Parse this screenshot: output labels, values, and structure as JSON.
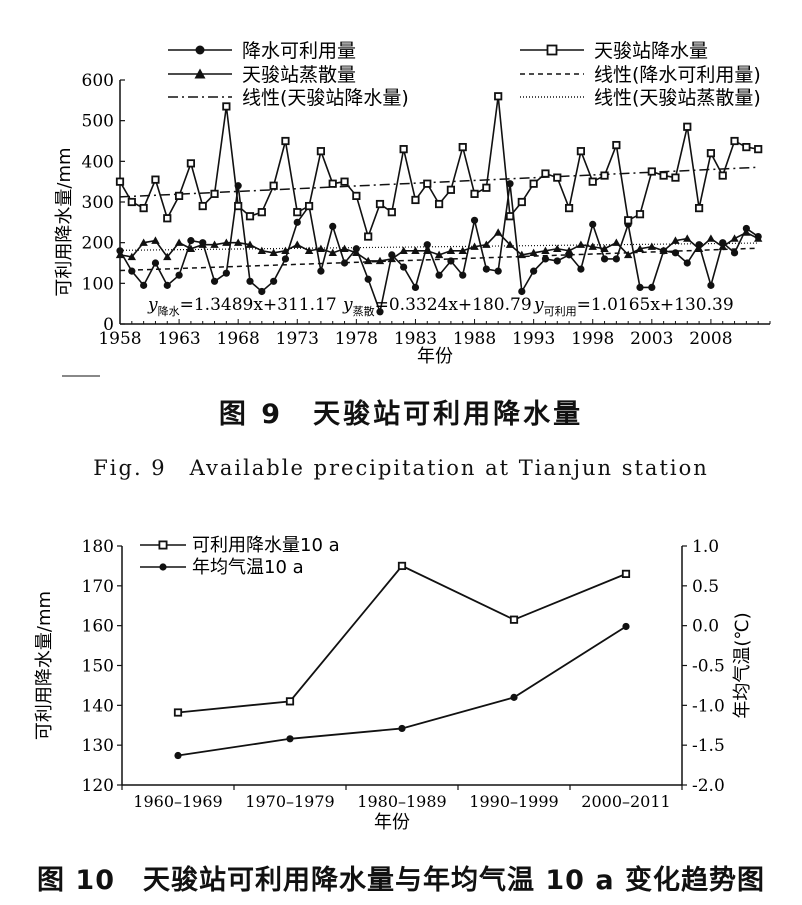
{
  "figure9": {
    "caption_cn": "图 9　天骏站可利用降水量",
    "caption_en": "Fig. 9　Available precipitation at Tianjun station",
    "chart_data": {
      "type": "line",
      "xlabel": "年份",
      "ylabel": "可利用降水量/mm",
      "ylim": [
        0,
        600
      ],
      "yticks": [
        0,
        100,
        200,
        300,
        400,
        500,
        600
      ],
      "xlim": [
        1958,
        2013
      ],
      "xticks": [
        1958,
        1963,
        1968,
        1973,
        1978,
        1983,
        1988,
        1993,
        1998,
        2003,
        2008
      ],
      "legend_position": "top",
      "legend": [
        "降水可利用量",
        "天骏站降水量",
        "天骏站蒸散量",
        "线性(降水可利用量)",
        "线性(天骏站降水量)",
        "线性(天骏站蒸散量)"
      ],
      "equations": [
        {
          "prefix": "y",
          "sub": "降水",
          "rest": "=1.3489x+311.17"
        },
        {
          "prefix": "y",
          "sub": "蒸散",
          "rest": "=0.3324x+180.79"
        },
        {
          "prefix": "y",
          "sub": "可利用",
          "rest": "=1.0165x+130.39"
        }
      ],
      "x": [
        1958,
        1959,
        1960,
        1961,
        1962,
        1963,
        1964,
        1965,
        1966,
        1967,
        1968,
        1969,
        1970,
        1971,
        1972,
        1973,
        1974,
        1975,
        1976,
        1977,
        1978,
        1979,
        1980,
        1981,
        1982,
        1983,
        1984,
        1985,
        1986,
        1987,
        1988,
        1989,
        1990,
        1991,
        1992,
        1993,
        1994,
        1995,
        1996,
        1997,
        1998,
        1999,
        2000,
        2001,
        2002,
        2003,
        2004,
        2005,
        2006,
        2007,
        2008,
        2009,
        2010,
        2011,
        2012
      ],
      "series": [
        {
          "name": "降水可利用量",
          "marker": "circle",
          "values": [
            180,
            130,
            95,
            150,
            95,
            120,
            205,
            200,
            105,
            125,
            340,
            105,
            80,
            105,
            160,
            250,
            290,
            130,
            240,
            150,
            185,
            110,
            30,
            170,
            140,
            90,
            195,
            120,
            155,
            120,
            255,
            135,
            130,
            345,
            80,
            130,
            160,
            155,
            170,
            135,
            245,
            160,
            160,
            245,
            90,
            90,
            180,
            175,
            150,
            195,
            95,
            200,
            175,
            235,
            215
          ]
        },
        {
          "name": "天骏站降水量",
          "marker": "square",
          "values": [
            350,
            300,
            285,
            355,
            260,
            315,
            395,
            290,
            320,
            535,
            290,
            265,
            275,
            340,
            450,
            275,
            290,
            425,
            345,
            350,
            315,
            215,
            295,
            275,
            430,
            305,
            345,
            295,
            330,
            435,
            320,
            335,
            560,
            265,
            300,
            345,
            370,
            360,
            285,
            425,
            350,
            365,
            440,
            255,
            270,
            375,
            365,
            360,
            485,
            285,
            420,
            365,
            450,
            435,
            430
          ]
        },
        {
          "name": "天骏站蒸散量",
          "marker": "triangle",
          "values": [
            170,
            165,
            200,
            205,
            165,
            200,
            185,
            195,
            195,
            200,
            200,
            195,
            180,
            175,
            180,
            195,
            180,
            185,
            175,
            185,
            175,
            155,
            155,
            160,
            180,
            180,
            180,
            170,
            180,
            180,
            190,
            195,
            225,
            195,
            170,
            175,
            180,
            185,
            180,
            195,
            190,
            185,
            200,
            170,
            185,
            190,
            180,
            205,
            210,
            185,
            210,
            190,
            210,
            225,
            210
          ]
        }
      ],
      "trend": [
        {
          "name": "线性(降水可利用量)",
          "slope": 1.0165,
          "intercept": 130.39
        },
        {
          "name": "线性(天骏站降水量)",
          "slope": 1.3489,
          "intercept": 311.17
        },
        {
          "name": "线性(天骏站蒸散量)",
          "slope": 0.3324,
          "intercept": 180.79
        }
      ]
    }
  },
  "figure10": {
    "caption_cn": "图 10　天骏站可利用降水量与年均气温 10 a 变化趋势图",
    "chart_data": {
      "type": "line",
      "categories": [
        "1960–1969",
        "1970–1979",
        "1980–1989",
        "1990–1999",
        "2000–2011"
      ],
      "xlabel": "年份",
      "ylabel": "可利用降水量/mm",
      "ylabel_right": "年均气温(℃)",
      "ylim": [
        120,
        180
      ],
      "yticks": [
        120,
        130,
        140,
        150,
        160,
        170,
        180
      ],
      "ylim_right": [
        -2.0,
        1.0
      ],
      "yticks_right": [
        "1.0",
        "0.5",
        "0.0",
        "-0.5",
        "-1.0",
        "-1.5",
        "-2.0"
      ],
      "legend_position": "top-left",
      "series": [
        {
          "name": "可利用降水量10 a",
          "marker": "square",
          "axis": "left",
          "values": [
            138.2,
            141.0,
            175.0,
            161.5,
            173.0
          ]
        },
        {
          "name": "年均气温10 a",
          "marker": "circle",
          "axis": "right",
          "values": [
            -1.63,
            -1.42,
            -1.29,
            -0.9,
            -0.01
          ]
        }
      ]
    }
  }
}
